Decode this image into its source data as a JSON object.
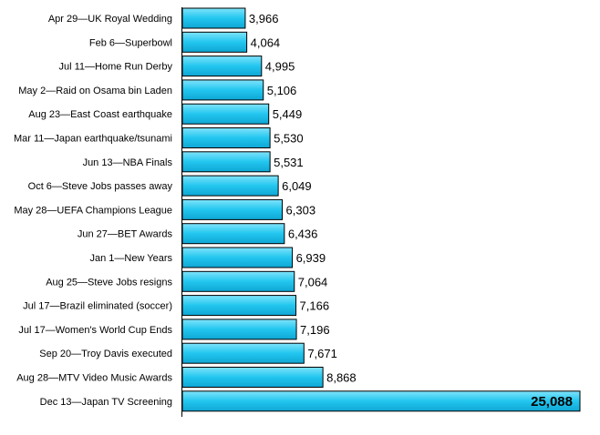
{
  "chart_data": {
    "type": "bar",
    "orientation": "horizontal",
    "title": "",
    "xlabel": "",
    "ylabel": "",
    "xlim": [
      0,
      25088
    ],
    "grid": false,
    "legend": "none",
    "bar_color": "#29c9f0",
    "bar_edge_color": "#000000",
    "categories": [
      "Apr 29—UK Royal Wedding",
      "Feb 6—Superbowl",
      "Jul 11—Home Run Derby",
      "May 2—Raid on Osama bin Laden",
      "Aug 23—East Coast earthquake",
      "Mar 11—Japan earthquake/tsunami",
      "Jun 13—NBA Finals",
      "Oct 6—Steve Jobs passes away",
      "May 28—UEFA Champions League",
      "Jun 27—BET Awards",
      "Jan 1—New Years",
      "Aug 25—Steve Jobs resigns",
      "Jul 17—Brazil eliminated (soccer)",
      "Jul 17—Women's World Cup Ends",
      "Sep 20—Troy Davis executed",
      "Aug 28—MTV Video Music Awards",
      "Dec 13—Japan TV Screening"
    ],
    "values": [
      3966,
      4064,
      4995,
      5106,
      5449,
      5530,
      5531,
      6049,
      6303,
      6436,
      6939,
      7064,
      7166,
      7196,
      7671,
      8868,
      25088
    ],
    "value_labels": [
      "3,966",
      "4,064",
      "4,995",
      "5,106",
      "5,449",
      "5,530",
      "5,531",
      "6,049",
      "6,303",
      "6,436",
      "6,939",
      "7,064",
      "7,166",
      "7,196",
      "7,671",
      "8,868",
      "25,088"
    ]
  }
}
